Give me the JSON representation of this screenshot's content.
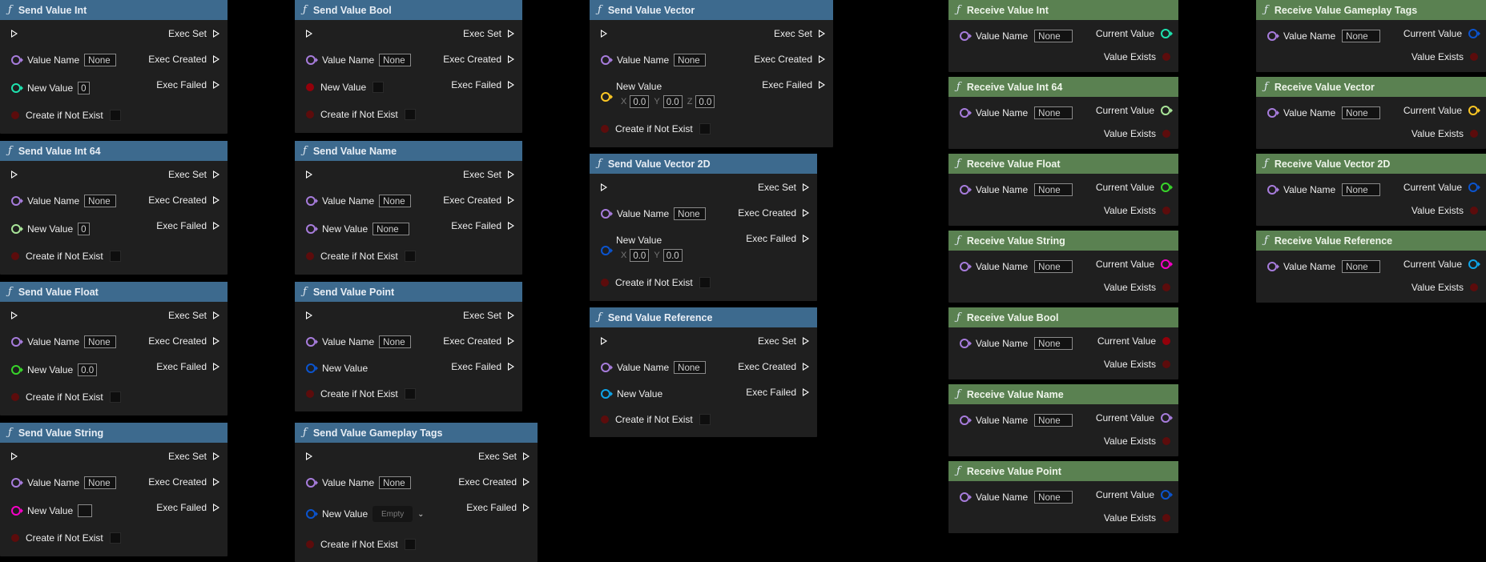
{
  "labels": {
    "exec_set": "Exec Set",
    "exec_created": "Exec Created",
    "exec_failed": "Exec Failed",
    "value_name": "Value Name",
    "new_value": "New Value",
    "create_if_not_exist": "Create if Not Exist",
    "current_value": "Current Value",
    "value_exists": "Value Exists",
    "none": "None",
    "int_default": "0",
    "float_default": "0.0",
    "empty": "Empty",
    "x": "X",
    "y": "Y",
    "z": "Z"
  },
  "icons": {
    "function": "ƒ"
  },
  "colors": {
    "send_header": "#3d6a8e",
    "receive_header": "#5a8151",
    "node_body": "#1f1f1f",
    "pin_name": "#a77cdc",
    "pin_int": "#1fe3af",
    "pin_int64": "#a9e599",
    "pin_float": "#38d52a",
    "pin_string": "#f700c7",
    "pin_bool": "#93000a",
    "pin_vector": "#fcc724",
    "pin_point": "#0b54cf",
    "pin_reference": "#0ea5e9"
  },
  "nodes": {
    "send_int": "Send Value Int",
    "send_int64": "Send Value Int 64",
    "send_float": "Send Value Float",
    "send_string": "Send Value String",
    "send_bool": "Send Value Bool",
    "send_name": "Send Value Name",
    "send_point": "Send Value Point",
    "send_gameplay_tags": "Send Value Gameplay Tags",
    "send_vector": "Send Value Vector",
    "send_vector2d": "Send Value Vector 2D",
    "send_reference": "Send Value Reference",
    "recv_int": "Receive Value Int",
    "recv_int64": "Receive Value Int 64",
    "recv_float": "Receive Value Float",
    "recv_string": "Receive Value String",
    "recv_bool": "Receive Value Bool",
    "recv_name": "Receive Value Name",
    "recv_point": "Receive Value Point",
    "recv_gameplay_tags": "Receive Value Gameplay Tags",
    "recv_vector": "Receive Value Vector",
    "recv_vector2d": "Receive Value Vector 2D",
    "recv_reference": "Receive Value Reference"
  }
}
